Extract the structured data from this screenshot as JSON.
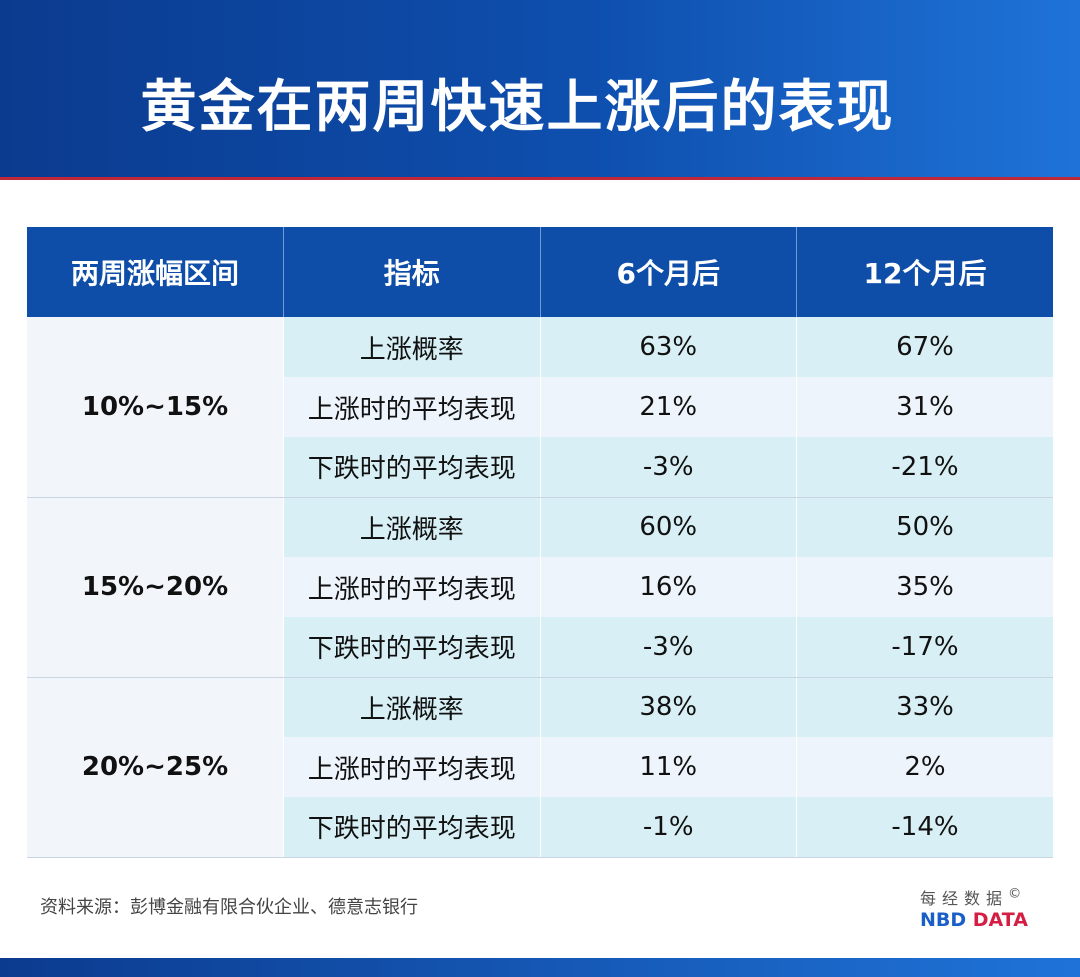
{
  "title": "黄金在两周快速上涨后的表现",
  "chart_data": {
    "type": "table",
    "columns": [
      "两周涨幅区间",
      "指标",
      "6个月后",
      "12个月后"
    ],
    "groups": [
      {
        "range": "10%~15%",
        "rows": [
          [
            "上涨概率",
            "63%",
            "67%"
          ],
          [
            "上涨时的平均表现",
            "21%",
            "31%"
          ],
          [
            "下跌时的平均表现",
            "-3%",
            "-21%"
          ]
        ]
      },
      {
        "range": "15%~20%",
        "rows": [
          [
            "上涨概率",
            "60%",
            "50%"
          ],
          [
            "上涨时的平均表现",
            "16%",
            "35%"
          ],
          [
            "下跌时的平均表现",
            "-3%",
            "-17%"
          ]
        ]
      },
      {
        "range": "20%~25%",
        "rows": [
          [
            "上涨概率",
            "38%",
            "33%"
          ],
          [
            "上涨时的平均表现",
            "11%",
            "2%"
          ],
          [
            "下跌时的平均表现",
            "-1%",
            "-14%"
          ]
        ]
      }
    ]
  },
  "source": "资料来源：彭博金融有限合伙企业、德意志银行",
  "logo": {
    "cn": "每经数据",
    "copyright": "©",
    "en_a": "NBD",
    "en_b": "DATA"
  },
  "colors": {
    "header": "#0e4ea8",
    "accent_red": "#c0283a",
    "row_alt": "#d8f0f5"
  }
}
